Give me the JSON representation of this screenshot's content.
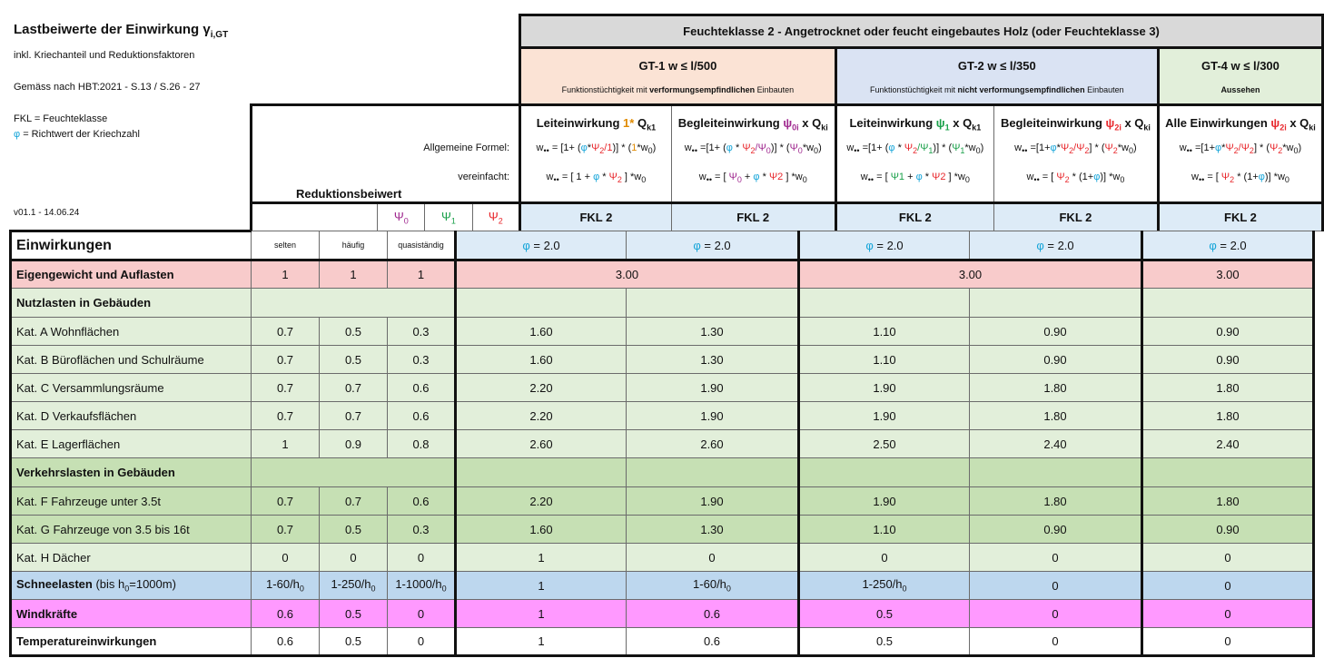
{
  "info": {
    "title": "Lastbeiwerte der Einwirkung γ",
    "title_sub": "i,GT",
    "sub1": "inkl. Kriechanteil und Reduktionsfaktoren",
    "sub2": "Gemäss nach HBT:2021 - S.13 / S.26 - 27",
    "fkl": "FKL = Feuchteklasse",
    "phi_sym": "φ",
    "phi_note": " = Richtwert der Kriechzahl",
    "version": "v01.1 - 14.06.24"
  },
  "header": {
    "top": "Feuchteklasse 2 - Angetrocknet oder feucht eingebautes Holz (oder Feuchteklasse 3)",
    "gt1_title": "GT-1   w ≤ l/500",
    "gt1_desc_a": "Funktionstüchtigkeit mit ",
    "gt1_desc_b": "verformungsempfindlichen",
    "gt1_desc_c": " Einbauten",
    "gt2_title": "GT-2   w ≤ l/350",
    "gt2_desc_a": "Funktionstüchtigkeit mit ",
    "gt2_desc_b": "nicht verformungsempfindlichen",
    "gt2_desc_c": " Einbauten",
    "gt4_title": "GT-4   w ≤ l/300",
    "gt4_desc": "Aussehen",
    "allg_formel": "Allgemeine Formel:",
    "vereinfacht": "vereinfacht:",
    "reduktion": "Reduktionsbeiwert",
    "einwirkungen": "Einwirkungen"
  },
  "columns": [
    {
      "t1": "Leiteinwirkung ",
      "t2": "1*",
      "t3": " Q",
      "t4": "k1",
      "f1": "w",
      "f2": " = [1+ (",
      "f3": "φ",
      "f4": "*",
      "f5": "Ψ",
      "f6": "2",
      "f7": "/1",
      "f8": ")] * (",
      "f9": "1",
      "f10": "*w",
      "f11": "0",
      "f12": ")",
      "v1": "w",
      "v2": " =    [ 1 + ",
      "v3": "φ",
      "v4": " * ",
      "v5": "Ψ",
      "v6": "2",
      "v7": " ]     *w",
      "v8": "0"
    },
    {
      "t1": "Begleiteinwirkung ",
      "t2": "ψ",
      "t2s": "0i",
      "t3": " x Q",
      "t4": "ki",
      "f1": "w",
      "f2": " =[1+ (",
      "f3": "φ",
      "f4": " * ",
      "f5": "Ψ",
      "f6": "2",
      "f7": "/Ψ",
      "f7s": "0",
      "f8": ")] * (",
      "f9": "Ψ",
      "f9s": "0",
      "f10": "*w",
      "f11": "0",
      "f12": ")",
      "v1": "w",
      "v2": " =    [ ",
      "v3": "Ψ",
      "v3s": "0",
      "v4": " + ",
      "v5": "φ",
      "v6": " * ",
      "v7": "Ψ2",
      "v8": " ]     *w",
      "v9": "0"
    },
    {
      "t1": "Leiteinwirkung ",
      "t2": "ψ",
      "t2s": "1",
      "t3": " x Q",
      "t4": "k1",
      "f1": "w",
      "f2": " =[1+ (",
      "f3": "φ",
      "f4": " * ",
      "f5": "Ψ",
      "f6": "2",
      "f7": "/Ψ",
      "f7s": "1",
      "f8": ")] * (",
      "f9": "Ψ",
      "f9s": "1",
      "f10": "*w",
      "f11": "0",
      "f12": ")",
      "v1": "w",
      "v2": " =    [ ",
      "v3": "Ψ1",
      "v4": " + ",
      "v5": "φ",
      "v6": " * ",
      "v7": "Ψ2",
      "v8": " ]     *w",
      "v9": "0"
    },
    {
      "t1": "Begleiteinwirkung ",
      "t2": "ψ",
      "t2s": "2i",
      "t3": " x Q",
      "t4": "ki",
      "f1": "w",
      "f2": " =[1+",
      "f3": "φ",
      "f4": "*",
      "f5": "Ψ",
      "f6": "2",
      "f7": "/Ψ",
      "f7s": "2",
      "f8": "] * (",
      "f9": "Ψ",
      "f9s": "2",
      "f10": "*w",
      "f11": "0",
      "f12": ")",
      "v1": "w",
      "v2": " =    [ ",
      "v3": "Ψ",
      "v3s": "2",
      "v4": " * (1+",
      "v5": "φ",
      "v6": ")]     *w",
      "v7": "0"
    },
    {
      "t1": "Alle Einwirkungen ",
      "t2": "ψ",
      "t2s": "2i",
      "t3": " x Q",
      "t4": "ki",
      "f1": "w",
      "f2": " =[1+",
      "f3": "φ",
      "f4": "*",
      "f5": "Ψ",
      "f6": "2",
      "f7": "/Ψ",
      "f7s": "2",
      "f8": "] * (",
      "f9": "Ψ",
      "f9s": "2",
      "f10": "*w",
      "f11": "0",
      "f12": ")",
      "v1": "w",
      "v2": " =    [ ",
      "v3": "Ψ",
      "v3s": "2",
      "v4": " * (1+",
      "v5": "φ",
      "v6": ")]     *w",
      "v7": "0"
    }
  ],
  "psi": {
    "p0": "Ψ",
    "p0s": "0",
    "p1": "Ψ",
    "p1s": "1",
    "p2": "Ψ",
    "p2s": "2",
    "selten": "selten",
    "haeufig": "häufig",
    "quasi": "quasiständig"
  },
  "fkl": {
    "label": "FKL 2",
    "phi": "φ",
    "phi_val": " = 2.0"
  },
  "sub_w": "••",
  "rows": {
    "perm": {
      "label": "Eigengewicht und Auflasten",
      "p0": "1",
      "p1": "1",
      "p2": "1",
      "gt1": "3.00",
      "gt2": "3.00",
      "gt4": "3.00"
    },
    "nutz_hdr": "Nutzlasten in Gebäuden",
    "verk_hdr": "Verkehrslasten in Gebäuden",
    "data": [
      {
        "label": "Kat. A Wohnflächen",
        "p0": "0.7",
        "p1": "0.5",
        "p2": "0.3",
        "v": [
          "1.60",
          "1.30",
          "1.10",
          "0.90",
          "0.90"
        ],
        "c": "nutz"
      },
      {
        "label": "Kat. B Büroflächen und Schulräume",
        "p0": "0.7",
        "p1": "0.5",
        "p2": "0.3",
        "v": [
          "1.60",
          "1.30",
          "1.10",
          "0.90",
          "0.90"
        ],
        "c": "nutz"
      },
      {
        "label": "Kat. C Versammlungsräume",
        "p0": "0.7",
        "p1": "0.7",
        "p2": "0.6",
        "v": [
          "2.20",
          "1.90",
          "1.90",
          "1.80",
          "1.80"
        ],
        "c": "nutz"
      },
      {
        "label": "Kat. D Verkaufsflächen",
        "p0": "0.7",
        "p1": "0.7",
        "p2": "0.6",
        "v": [
          "2.20",
          "1.90",
          "1.90",
          "1.80",
          "1.80"
        ],
        "c": "nutz"
      },
      {
        "label": "Kat. E Lagerflächen",
        "p0": "1",
        "p1": "0.9",
        "p2": "0.8",
        "v": [
          "2.60",
          "2.60",
          "2.50",
          "2.40",
          "2.40"
        ],
        "c": "nutz"
      }
    ],
    "data2": [
      {
        "label": "Kat. F Fahrzeuge unter 3.5t",
        "p0": "0.7",
        "p1": "0.7",
        "p2": "0.6",
        "v": [
          "2.20",
          "1.90",
          "1.90",
          "1.80",
          "1.80"
        ],
        "c": "verk"
      },
      {
        "label": "Kat. G Fahrzeuge von 3.5 bis 16t",
        "p0": "0.7",
        "p1": "0.5",
        "p2": "0.3",
        "v": [
          "1.60",
          "1.30",
          "1.10",
          "0.90",
          "0.90"
        ],
        "c": "verk"
      },
      {
        "label": "Kat. H Dächer",
        "p0": "0",
        "p1": "0",
        "p2": "0",
        "v": [
          "1",
          "0",
          "0",
          "0",
          "0"
        ],
        "c": "nutz"
      }
    ],
    "snow": {
      "label_a": "Schneelasten",
      "label_b": " (bis h",
      "label_s": "0",
      "label_c": "=1000m)",
      "p0": "1-60/h",
      "p0s": "0",
      "p1": "1-250/h",
      "p1s": "0",
      "p2": "1-1000/h",
      "p2s": "0",
      "v1": "1",
      "v2": "1-60/h",
      "v2s": "0",
      "v3": "1-250/h",
      "v3s": "0",
      "v4": "0",
      "v5": "0"
    },
    "wind": {
      "label": "Windkräfte",
      "p0": "0.6",
      "p1": "0.5",
      "p2": "0",
      "v": [
        "1",
        "0.6",
        "0.5",
        "0",
        "0"
      ]
    },
    "temp": {
      "label": "Temperatureinwirkungen",
      "p0": "0.6",
      "p1": "0.5",
      "p2": "0",
      "v": [
        "1",
        "0.6",
        "0.5",
        "0",
        "0"
      ]
    }
  }
}
